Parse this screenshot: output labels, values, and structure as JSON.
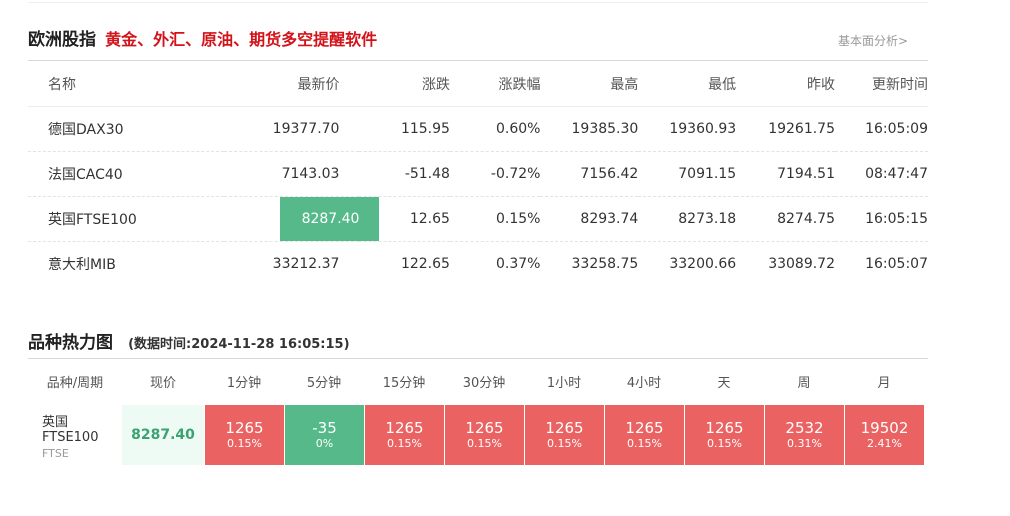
{
  "section1": {
    "title": "欧洲股指",
    "subtitle": "黄金、外汇、原油、期货多空提醒软件",
    "link": "基本面分析>"
  },
  "table": {
    "headers": [
      "名称",
      "最新价",
      "涨跌",
      "涨跌幅",
      "最高",
      "最低",
      "昨收",
      "更新时间"
    ],
    "rows": [
      {
        "name": "德国DAX30",
        "price": "19377.70",
        "change": "115.95",
        "pct": "0.60%",
        "high": "19385.30",
        "low": "19360.93",
        "prev": "19261.75",
        "time": "16:05:09",
        "dir": "up"
      },
      {
        "name": "法国CAC40",
        "price": "7143.03",
        "change": "-51.48",
        "pct": "-0.72%",
        "high": "7156.42",
        "low": "7091.15",
        "prev": "7194.51",
        "time": "08:47:47",
        "dir": "down"
      },
      {
        "name": "英国FTSE100",
        "price": "8287.40",
        "change": "12.65",
        "pct": "0.15%",
        "high": "8293.74",
        "low": "8273.18",
        "prev": "8274.75",
        "time": "16:05:15",
        "dir": "up"
      },
      {
        "name": "意大利MIB",
        "price": "33212.37",
        "change": "122.65",
        "pct": "0.37%",
        "high": "33258.75",
        "low": "33200.66",
        "prev": "33089.72",
        "time": "16:05:07",
        "dir": "up"
      }
    ]
  },
  "section2": {
    "title": "品种热力图",
    "subtitle": "(数据时间:2024-11-28 16:05:15)"
  },
  "heatmap": {
    "headers": [
      "品种/周期",
      "现价",
      "1分钟",
      "5分钟",
      "15分钟",
      "30分钟",
      "1小时",
      "4小时",
      "天",
      "周",
      "月"
    ],
    "row": {
      "name": "英国FTSE100",
      "code": "FTSE",
      "price": "8287.40",
      "cells": [
        {
          "value": "1265",
          "pct": "0.15%",
          "color": "red"
        },
        {
          "value": "-35",
          "pct": "0%",
          "color": "green"
        },
        {
          "value": "1265",
          "pct": "0.15%",
          "color": "red"
        },
        {
          "value": "1265",
          "pct": "0.15%",
          "color": "red"
        },
        {
          "value": "1265",
          "pct": "0.15%",
          "color": "red"
        },
        {
          "value": "1265",
          "pct": "0.15%",
          "color": "red"
        },
        {
          "value": "1265",
          "pct": "0.15%",
          "color": "red"
        },
        {
          "value": "2532",
          "pct": "0.31%",
          "color": "red"
        },
        {
          "value": "19502",
          "pct": "2.41%",
          "color": "red"
        }
      ]
    }
  },
  "colors": {
    "up": "#e15a5a",
    "down": "#3ba272",
    "heat_red": "#eb6262",
    "heat_green": "#56b98a",
    "highlight": "#56b98a",
    "brand_red": "#d3131a"
  }
}
